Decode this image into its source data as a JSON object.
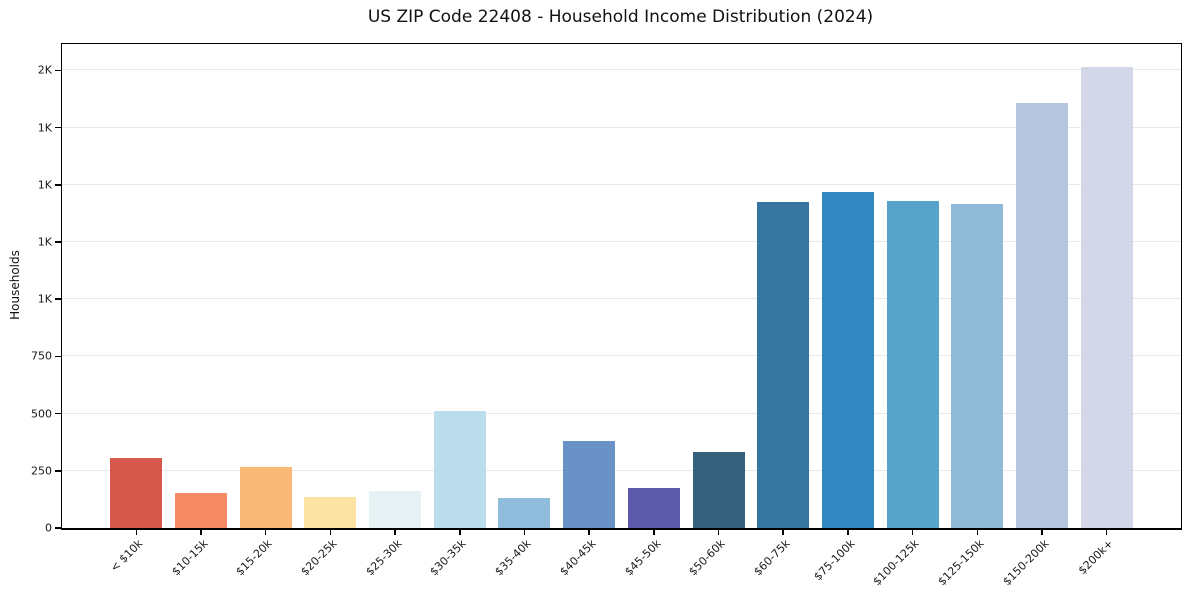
{
  "chart_data": {
    "type": "bar",
    "title": "US ZIP Code 22408 - Household Income Distribution (2024)",
    "xlabel": "",
    "ylabel": "Households",
    "categories": [
      "< $10k",
      "$10-15k",
      "$15-20k",
      "$20-25k",
      "$25-30k",
      "$30-35k",
      "$35-40k",
      "$40-45k",
      "$45-50k",
      "$50-60k",
      "$60-75k",
      "$75-100k",
      "$100-125k",
      "$125-150k",
      "$150-200k",
      "$200k+"
    ],
    "values": [
      308,
      152,
      268,
      137,
      162,
      513,
      130,
      381,
      175,
      334,
      1425,
      1470,
      1430,
      1418,
      1859,
      2014
    ],
    "bar_colors": [
      "#d7584d",
      "#f58a63",
      "#fab877",
      "#fde3a3",
      "#e5f1f2",
      "#badcec",
      "#90bcdc",
      "#6b92c7",
      "#5c59ab",
      "#36617c",
      "#36759f",
      "#3387c0",
      "#58a3c9",
      "#90b8d7",
      "#b5c5df",
      "#d4d7e7"
    ],
    "ylim": [
      0,
      2115
    ],
    "yticks": [
      {
        "value": 0,
        "label": "0"
      },
      {
        "value": 250,
        "label": "250"
      },
      {
        "value": 500,
        "label": "500"
      },
      {
        "value": 750,
        "label": "750"
      },
      {
        "value": 1000,
        "label": "1K"
      },
      {
        "value": 1250,
        "label": "1K"
      },
      {
        "value": 1500,
        "label": "1K"
      },
      {
        "value": 1750,
        "label": "1K"
      },
      {
        "value": 2000,
        "label": "2K"
      }
    ],
    "grid": "horizontal-only",
    "grid_color": "#e8e8ec",
    "legend": "none",
    "x_tick_rotation_deg": 45
  }
}
